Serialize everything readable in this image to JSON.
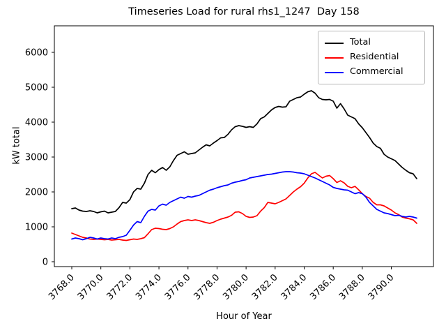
{
  "title": "Timeseries Load for rural rhs1_1247  Day 158",
  "legend": {
    "entries": [
      {
        "label": "Total",
        "color": "#000000"
      },
      {
        "label": "Residential",
        "color": "#ff0000"
      },
      {
        "label": "Commercial",
        "color": "#0000ff"
      }
    ]
  },
  "chart_data": {
    "type": "line",
    "title": "Timeseries Load for rural rhs1_1247  Day 158",
    "xlabel": "Hour of Year",
    "ylabel": "kW total",
    "grid": false,
    "legend_position": "upper right",
    "xlim": [
      3766.8,
      3792.9
    ],
    "ylim": [
      -140,
      6760
    ],
    "xticks": [
      3768,
      3770,
      3772,
      3774,
      3776,
      3778,
      3780,
      3782,
      3784,
      3786,
      3788,
      3790
    ],
    "xtick_labels": [
      "3768.0",
      "3770.0",
      "3772.0",
      "3774.0",
      "3776.0",
      "3778.0",
      "3780.0",
      "3782.0",
      "3784.0",
      "3786.0",
      "3788.0",
      "3790.0"
    ],
    "yticks": [
      0,
      1000,
      2000,
      3000,
      4000,
      5000,
      6000
    ],
    "x": [
      3768.0,
      3768.25,
      3768.5,
      3768.75,
      3769.0,
      3769.25,
      3769.5,
      3769.75,
      3770.0,
      3770.25,
      3770.5,
      3770.75,
      3771.0,
      3771.25,
      3771.5,
      3771.75,
      3772.0,
      3772.25,
      3772.5,
      3772.75,
      3773.0,
      3773.25,
      3773.5,
      3773.75,
      3774.0,
      3774.25,
      3774.5,
      3774.75,
      3775.0,
      3775.25,
      3775.5,
      3775.75,
      3776.0,
      3776.25,
      3776.5,
      3776.75,
      3777.0,
      3777.25,
      3777.5,
      3777.75,
      3778.0,
      3778.25,
      3778.5,
      3778.75,
      3779.0,
      3779.25,
      3779.5,
      3779.75,
      3780.0,
      3780.25,
      3780.5,
      3780.75,
      3781.0,
      3781.25,
      3781.5,
      3781.75,
      3782.0,
      3782.25,
      3782.5,
      3782.75,
      3783.0,
      3783.25,
      3783.5,
      3783.75,
      3784.0,
      3784.25,
      3784.5,
      3784.75,
      3785.0,
      3785.25,
      3785.5,
      3785.75,
      3786.0,
      3786.25,
      3786.5,
      3786.75,
      3787.0,
      3787.25,
      3787.5,
      3787.75,
      3788.0,
      3788.25,
      3788.5,
      3788.75,
      3789.0,
      3789.25,
      3789.5,
      3789.75,
      3790.0,
      3790.25,
      3790.5,
      3790.75,
      3791.0,
      3791.25,
      3791.5,
      3791.75
    ],
    "series": [
      {
        "name": "Total",
        "color": "#000000",
        "values": [
          1520,
          1540,
          1480,
          1450,
          1440,
          1460,
          1440,
          1400,
          1430,
          1450,
          1400,
          1420,
          1440,
          1550,
          1700,
          1680,
          1780,
          2000,
          2100,
          2080,
          2250,
          2500,
          2620,
          2550,
          2640,
          2700,
          2620,
          2720,
          2900,
          3050,
          3100,
          3150,
          3080,
          3100,
          3120,
          3200,
          3280,
          3350,
          3320,
          3400,
          3470,
          3550,
          3560,
          3650,
          3780,
          3870,
          3900,
          3880,
          3850,
          3870,
          3850,
          3950,
          4100,
          4150,
          4250,
          4350,
          4420,
          4450,
          4430,
          4440,
          4600,
          4650,
          4700,
          4720,
          4800,
          4870,
          4900,
          4830,
          4700,
          4650,
          4640,
          4650,
          4600,
          4400,
          4530,
          4380,
          4200,
          4150,
          4100,
          3950,
          3840,
          3700,
          3560,
          3400,
          3300,
          3250,
          3080,
          3000,
          2950,
          2900,
          2800,
          2700,
          2620,
          2550,
          2520,
          2380
        ]
      },
      {
        "name": "Residential",
        "color": "#ff0000",
        "values": [
          820,
          780,
          740,
          700,
          680,
          650,
          640,
          650,
          640,
          630,
          640,
          620,
          630,
          640,
          620,
          610,
          630,
          650,
          640,
          660,
          690,
          800,
          920,
          960,
          950,
          930,
          920,
          950,
          1000,
          1080,
          1150,
          1180,
          1200,
          1180,
          1200,
          1180,
          1150,
          1120,
          1100,
          1130,
          1180,
          1220,
          1250,
          1280,
          1330,
          1420,
          1430,
          1380,
          1300,
          1270,
          1280,
          1320,
          1450,
          1550,
          1700,
          1680,
          1660,
          1700,
          1750,
          1800,
          1900,
          2000,
          2080,
          2150,
          2250,
          2400,
          2520,
          2560,
          2480,
          2400,
          2450,
          2470,
          2380,
          2270,
          2320,
          2260,
          2160,
          2120,
          2160,
          2060,
          1950,
          1870,
          1820,
          1700,
          1630,
          1630,
          1600,
          1540,
          1480,
          1400,
          1350,
          1280,
          1250,
          1230,
          1200,
          1100
        ]
      },
      {
        "name": "Commercial",
        "color": "#0000ff",
        "values": [
          650,
          680,
          660,
          630,
          660,
          700,
          680,
          650,
          680,
          660,
          650,
          680,
          660,
          700,
          720,
          760,
          900,
          1050,
          1150,
          1120,
          1300,
          1450,
          1500,
          1480,
          1600,
          1650,
          1620,
          1700,
          1750,
          1800,
          1850,
          1820,
          1870,
          1850,
          1880,
          1900,
          1950,
          2000,
          2050,
          2080,
          2120,
          2150,
          2180,
          2200,
          2250,
          2280,
          2300,
          2330,
          2350,
          2400,
          2420,
          2440,
          2460,
          2480,
          2500,
          2510,
          2530,
          2550,
          2570,
          2580,
          2580,
          2570,
          2550,
          2540,
          2520,
          2480,
          2440,
          2400,
          2350,
          2300,
          2250,
          2200,
          2130,
          2100,
          2080,
          2060,
          2050,
          2000,
          1950,
          1980,
          1950,
          1850,
          1700,
          1600,
          1500,
          1450,
          1400,
          1380,
          1350,
          1320,
          1330,
          1300,
          1280,
          1300,
          1280,
          1250
        ]
      }
    ]
  }
}
